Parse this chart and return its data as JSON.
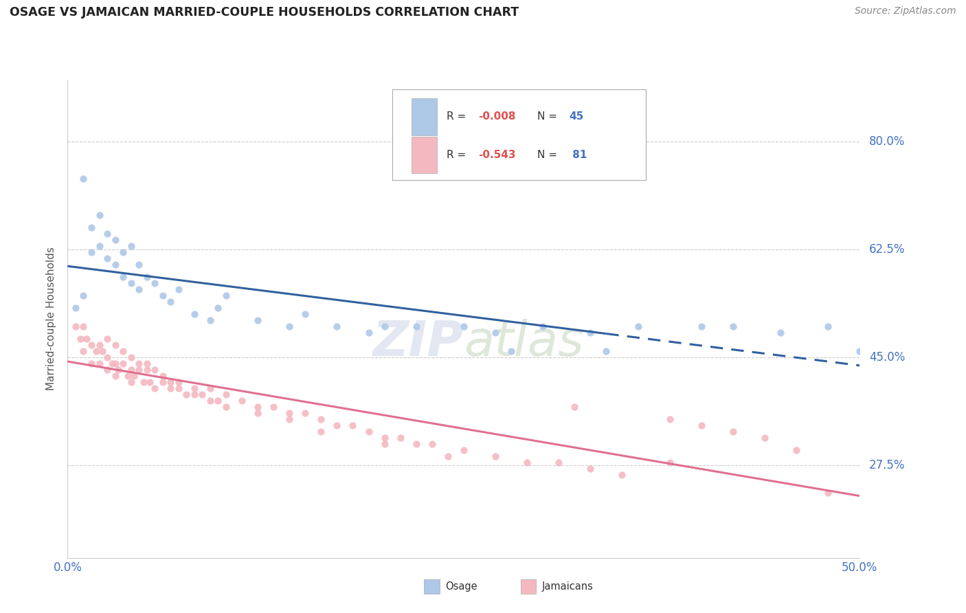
{
  "title": "OSAGE VS JAMAICAN MARRIED-COUPLE HOUSEHOLDS CORRELATION CHART",
  "source": "Source: ZipAtlas.com",
  "ylabel": "Married-couple Households",
  "ytick_labels": [
    "80.0%",
    "62.5%",
    "45.0%",
    "27.5%"
  ],
  "ytick_values": [
    0.8,
    0.625,
    0.45,
    0.275
  ],
  "xlim": [
    0.0,
    0.5
  ],
  "ylim": [
    0.125,
    0.9
  ],
  "osage_color": "#aec8e8",
  "jamaican_color": "#f4b8c1",
  "osage_line_color": "#3060a0",
  "jamaican_line_color": "#e07090",
  "osage_x": [
    0.005,
    0.01,
    0.01,
    0.015,
    0.015,
    0.02,
    0.02,
    0.025,
    0.025,
    0.03,
    0.03,
    0.035,
    0.035,
    0.04,
    0.04,
    0.045,
    0.045,
    0.05,
    0.055,
    0.06,
    0.065,
    0.07,
    0.08,
    0.09,
    0.095,
    0.1,
    0.12,
    0.14,
    0.15,
    0.17,
    0.19,
    0.2,
    0.22,
    0.25,
    0.27,
    0.3,
    0.33,
    0.36,
    0.4,
    0.42,
    0.45,
    0.48,
    0.34,
    0.5,
    0.28
  ],
  "osage_y": [
    0.53,
    0.74,
    0.55,
    0.66,
    0.62,
    0.68,
    0.63,
    0.65,
    0.61,
    0.64,
    0.6,
    0.62,
    0.58,
    0.63,
    0.57,
    0.6,
    0.56,
    0.58,
    0.57,
    0.55,
    0.54,
    0.56,
    0.52,
    0.51,
    0.53,
    0.55,
    0.51,
    0.5,
    0.52,
    0.5,
    0.49,
    0.5,
    0.5,
    0.5,
    0.49,
    0.5,
    0.49,
    0.5,
    0.5,
    0.5,
    0.49,
    0.5,
    0.46,
    0.46,
    0.46
  ],
  "jamaican_x": [
    0.005,
    0.008,
    0.01,
    0.01,
    0.012,
    0.015,
    0.015,
    0.018,
    0.02,
    0.02,
    0.022,
    0.025,
    0.025,
    0.028,
    0.03,
    0.03,
    0.032,
    0.035,
    0.038,
    0.04,
    0.04,
    0.042,
    0.045,
    0.048,
    0.05,
    0.052,
    0.055,
    0.06,
    0.065,
    0.07,
    0.075,
    0.08,
    0.085,
    0.09,
    0.095,
    0.1,
    0.11,
    0.12,
    0.13,
    0.14,
    0.15,
    0.16,
    0.17,
    0.18,
    0.19,
    0.2,
    0.21,
    0.22,
    0.23,
    0.25,
    0.27,
    0.29,
    0.31,
    0.33,
    0.35,
    0.38,
    0.4,
    0.42,
    0.44,
    0.46,
    0.025,
    0.03,
    0.035,
    0.04,
    0.045,
    0.05,
    0.055,
    0.06,
    0.065,
    0.07,
    0.08,
    0.09,
    0.1,
    0.12,
    0.14,
    0.16,
    0.2,
    0.24,
    0.32,
    0.38,
    0.48
  ],
  "jamaican_y": [
    0.5,
    0.48,
    0.5,
    0.46,
    0.48,
    0.47,
    0.44,
    0.46,
    0.47,
    0.44,
    0.46,
    0.45,
    0.43,
    0.44,
    0.44,
    0.42,
    0.43,
    0.44,
    0.42,
    0.43,
    0.41,
    0.42,
    0.43,
    0.41,
    0.43,
    0.41,
    0.4,
    0.41,
    0.4,
    0.41,
    0.39,
    0.4,
    0.39,
    0.4,
    0.38,
    0.39,
    0.38,
    0.37,
    0.37,
    0.36,
    0.36,
    0.35,
    0.34,
    0.34,
    0.33,
    0.32,
    0.32,
    0.31,
    0.31,
    0.3,
    0.29,
    0.28,
    0.28,
    0.27,
    0.26,
    0.35,
    0.34,
    0.33,
    0.32,
    0.3,
    0.48,
    0.47,
    0.46,
    0.45,
    0.44,
    0.44,
    0.43,
    0.42,
    0.41,
    0.4,
    0.39,
    0.38,
    0.37,
    0.36,
    0.35,
    0.33,
    0.31,
    0.29,
    0.37,
    0.28,
    0.23
  ]
}
